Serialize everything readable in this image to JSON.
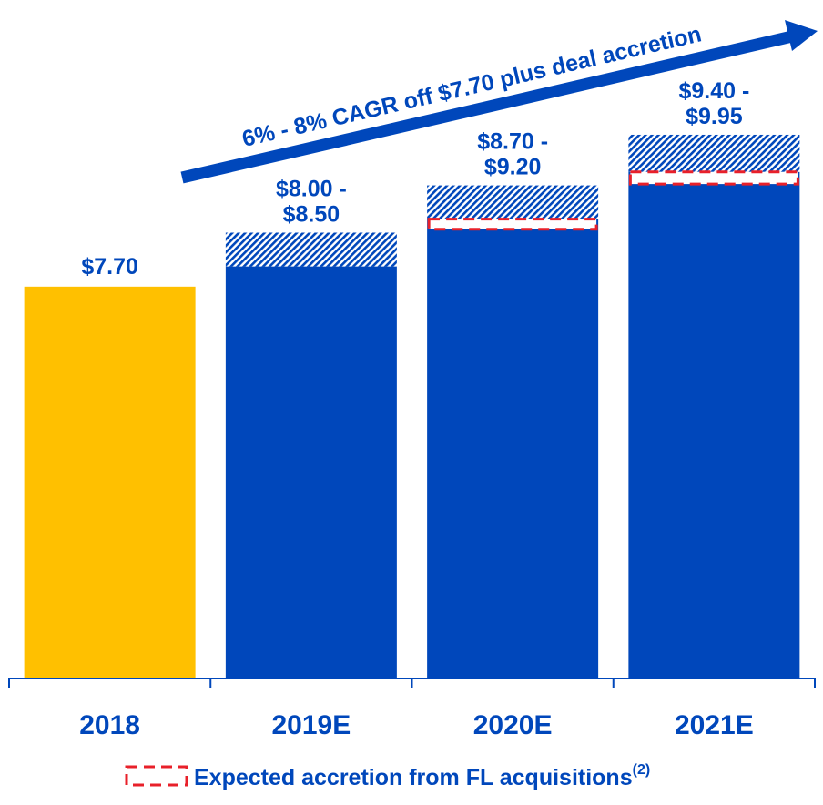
{
  "chart_data": {
    "type": "range_bar",
    "annotation": "6% - 8% CAGR off $7.70 plus deal accretion",
    "categories": [
      "2018",
      "2019E",
      "2020E",
      "2021E"
    ],
    "values": [
      7.7,
      8.0,
      8.7,
      9.4
    ],
    "value_labels": [
      "$7.70",
      "$8.00 -",
      "$8.70 -",
      "$9.40 -"
    ],
    "range_high": [
      null,
      8.5,
      9.2,
      9.95
    ],
    "range_high_labels": [
      null,
      "$8.50",
      "$9.20",
      "$9.95"
    ],
    "colors": [
      "#FFC000",
      "#0047BB",
      "#0047BB",
      "#0047BB"
    ],
    "accretion": {
      "label": "Expected accretion from FL acquisitions",
      "superscript": "(2)",
      "color": "#E8202A",
      "values": [
        null,
        null,
        0.15,
        0.18
      ]
    },
    "ylim": [
      1.9,
      10.3
    ]
  }
}
